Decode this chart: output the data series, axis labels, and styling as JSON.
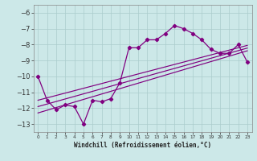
{
  "xlabel": "Windchill (Refroidissement éolien,°C)",
  "x": [
    0,
    1,
    2,
    3,
    4,
    5,
    6,
    7,
    8,
    9,
    10,
    11,
    12,
    13,
    14,
    15,
    16,
    17,
    18,
    19,
    20,
    21,
    22,
    23
  ],
  "y_main": [
    -10.0,
    -11.5,
    -12.1,
    -11.8,
    -11.9,
    -13.0,
    -11.5,
    -11.6,
    -11.4,
    -10.4,
    -8.2,
    -8.2,
    -7.7,
    -7.7,
    -7.3,
    -6.8,
    -7.0,
    -7.3,
    -7.7,
    -8.3,
    -8.55,
    -8.55,
    -8.0,
    -9.1
  ],
  "y_reg1": [
    -11.5,
    -11.35,
    -11.2,
    -11.05,
    -10.9,
    -10.75,
    -10.6,
    -10.45,
    -10.3,
    -10.15,
    -10.0,
    -9.85,
    -9.7,
    -9.55,
    -9.4,
    -9.25,
    -9.1,
    -8.95,
    -8.8,
    -8.65,
    -8.5,
    -8.35,
    -8.2,
    -8.05
  ],
  "y_reg2": [
    -11.9,
    -11.74,
    -11.58,
    -11.42,
    -11.26,
    -11.1,
    -10.94,
    -10.78,
    -10.62,
    -10.46,
    -10.3,
    -10.14,
    -9.98,
    -9.82,
    -9.66,
    -9.5,
    -9.34,
    -9.18,
    -9.02,
    -8.86,
    -8.7,
    -8.54,
    -8.38,
    -8.22
  ],
  "y_reg3": [
    -12.3,
    -12.13,
    -11.96,
    -11.79,
    -11.62,
    -11.45,
    -11.28,
    -11.11,
    -10.94,
    -10.77,
    -10.6,
    -10.43,
    -10.26,
    -10.09,
    -9.92,
    -9.75,
    -9.58,
    -9.41,
    -9.24,
    -9.07,
    -8.9,
    -8.73,
    -8.56,
    -8.39
  ],
  "line_color": "#800080",
  "bg_color": "#cce8e8",
  "grid_color": "#aacccc",
  "ylim": [
    -13.5,
    -5.5
  ],
  "xlim": [
    -0.5,
    23.5
  ],
  "yticks": [
    -13,
    -12,
    -11,
    -10,
    -9,
    -8,
    -7,
    -6
  ]
}
